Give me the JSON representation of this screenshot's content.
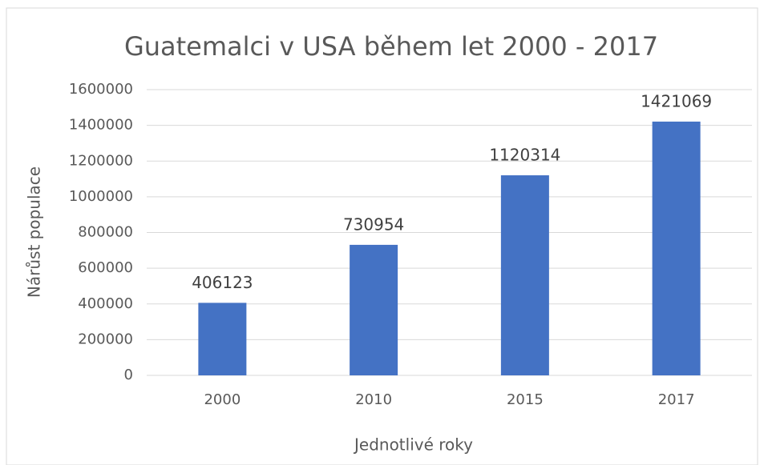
{
  "chart_data": {
    "type": "bar",
    "title": "Guatemalci v USA během let 2000 - 2017",
    "xlabel": "Jednotlivé roky",
    "ylabel": "Nárůst populace",
    "categories": [
      "2000",
      "2010",
      "2015",
      "2017"
    ],
    "values": [
      406123,
      730954,
      1120314,
      1421069
    ],
    "color": "#4472c4",
    "ylim": [
      0,
      1600000
    ],
    "yticks": [
      0,
      200000,
      400000,
      600000,
      800000,
      1000000,
      1200000,
      1400000,
      1600000
    ],
    "grid": true,
    "data_labels": true
  }
}
